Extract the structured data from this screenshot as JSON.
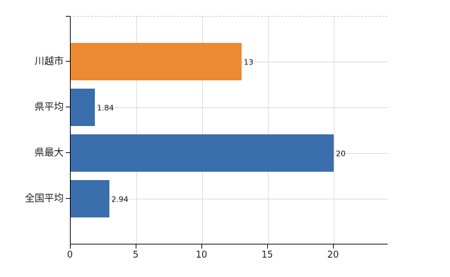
{
  "chart_data": {
    "type": "bar",
    "orientation": "horizontal",
    "title": "",
    "xlabel": "",
    "ylabel": "",
    "categories": [
      "川越市",
      "県平均",
      "県最大",
      "全国平均"
    ],
    "values": [
      13,
      1.84,
      20,
      2.94
    ],
    "value_labels": [
      "13",
      "1.84",
      "20",
      "2.94"
    ],
    "bar_colors": [
      "#ec8933",
      "#3a6eac",
      "#3a6eac",
      "#3a6eac"
    ],
    "x_ticks": [
      0,
      5,
      10,
      15,
      20
    ],
    "x_tick_labels": [
      "0",
      "5",
      "10",
      "15",
      "20"
    ],
    "xlim": [
      0,
      24.1
    ],
    "grid": true,
    "legend": false
  },
  "colors": {
    "highlight_bar": "#ec8933",
    "default_bar": "#3a6eac",
    "grid_line": "#d7dcd7",
    "plot_top_dashed_line": "#cccccc",
    "axis_line": "#000000",
    "text": "#1c1c1c"
  }
}
